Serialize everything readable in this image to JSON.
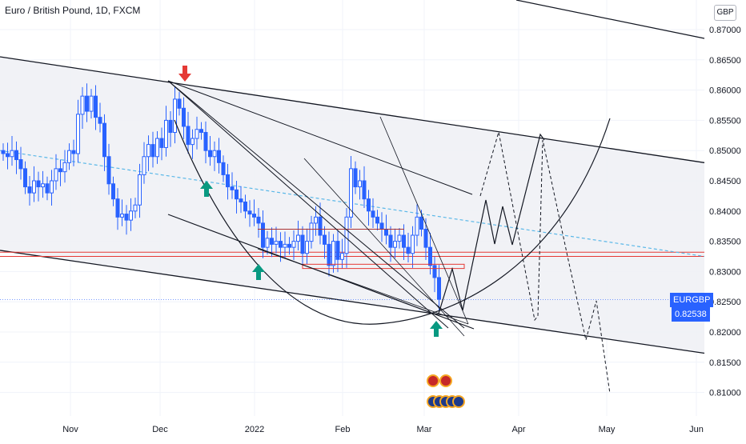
{
  "header": {
    "symbol_name": "Euro / British Pound",
    "interval": "1D",
    "exchange": "FXCM",
    "currency": "GBP"
  },
  "last_price": {
    "symbol": "EURGBP",
    "value": "0.82538",
    "color": "#2962ff"
  },
  "colors": {
    "up": "#2962ff",
    "down": "#2962ff",
    "channel_fill": "#f0f1f5",
    "trend_line": "#131722",
    "dashed_ma": "#5bb8e8",
    "resistance": "#e53935",
    "arrow_up": "#089981",
    "arrow_down": "#e53935"
  },
  "chart_data": {
    "type": "candlestick",
    "title": "Euro / British Pound, 1D, FXCM",
    "y_axis": {
      "ticks": [
        "0.87000",
        "0.86500",
        "0.86000",
        "0.85500",
        "0.85000",
        "0.84500",
        "0.84000",
        "0.83500",
        "0.83000",
        "0.82500",
        "0.82000",
        "0.81500",
        "0.81000"
      ],
      "min": 0.8075,
      "max": 0.8725
    },
    "x_axis": {
      "ticks": [
        "Nov",
        "Dec",
        "2022",
        "Feb",
        "Mar",
        "Apr",
        "May",
        "Jun"
      ]
    },
    "candles_close": [
      0.8495,
      0.849,
      0.85,
      0.8485,
      0.847,
      0.844,
      0.843,
      0.845,
      0.844,
      0.8445,
      0.843,
      0.845,
      0.847,
      0.8465,
      0.848,
      0.85,
      0.8495,
      0.856,
      0.859,
      0.8565,
      0.859,
      0.8555,
      0.8545,
      0.849,
      0.8445,
      0.842,
      0.839,
      0.8395,
      0.8385,
      0.84,
      0.841,
      0.846,
      0.849,
      0.851,
      0.849,
      0.852,
      0.8505,
      0.855,
      0.853,
      0.8585,
      0.857,
      0.854,
      0.851,
      0.852,
      0.8535,
      0.853,
      0.85,
      0.849,
      0.85,
      0.848,
      0.846,
      0.844,
      0.8435,
      0.842,
      0.8415,
      0.84,
      0.8395,
      0.839,
      0.838,
      0.834,
      0.8355,
      0.8345,
      0.835,
      0.834,
      0.8345,
      0.834,
      0.835,
      0.836,
      0.833,
      0.835,
      0.838,
      0.839,
      0.836,
      0.8345,
      0.831,
      0.835,
      0.832,
      0.833,
      0.839,
      0.847,
      0.844,
      0.845,
      0.842,
      0.84,
      0.839,
      0.838,
      0.837,
      0.836,
      0.834,
      0.835,
      0.836,
      0.834,
      0.833,
      0.836,
      0.839,
      0.837,
      0.834,
      0.831,
      0.829,
      0.8254
    ],
    "channel": {
      "upper_start": 0.8655,
      "upper_end": 0.848,
      "lower_start": 0.8335,
      "lower_end": 0.8165
    },
    "resistance_levels": [
      0.8332,
      0.8325
    ],
    "annotations": {
      "projection_path_dashed": "forecast",
      "arc": "rounding bottom"
    }
  }
}
